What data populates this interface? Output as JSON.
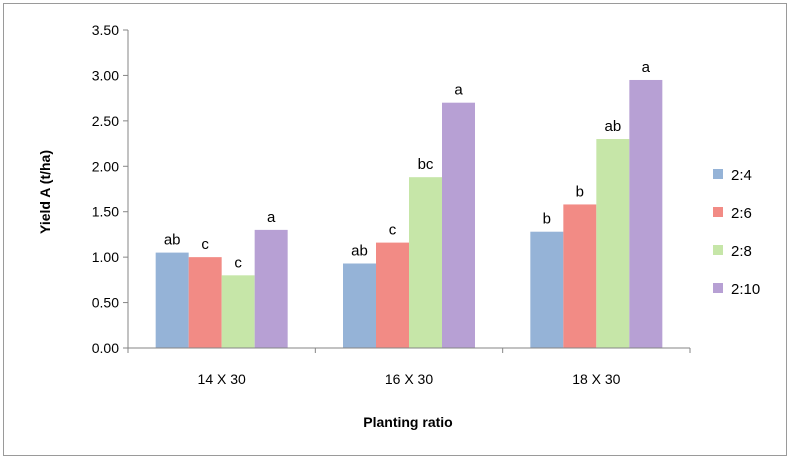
{
  "chart_data": {
    "type": "bar",
    "xlabel": "Planting ratio",
    "ylabel": "Yield A (t/ha)",
    "categories": [
      "14 X 30",
      "16 X 30",
      "18 X 30"
    ],
    "ylim": [
      0,
      3.5
    ],
    "yticks": [
      "0.00",
      "0.50",
      "1.00",
      "1.50",
      "2.00",
      "2.50",
      "3.00",
      "3.50"
    ],
    "grid": false,
    "legend_position": "right",
    "series": [
      {
        "name": "2:4",
        "color": "#95B3D7",
        "values": [
          1.05,
          0.93,
          1.28
        ],
        "labels": [
          "ab",
          "ab",
          "b"
        ]
      },
      {
        "name": "2:6",
        "color": "#F28B85",
        "values": [
          1.0,
          1.16,
          1.58
        ],
        "labels": [
          "c",
          "c",
          "b"
        ]
      },
      {
        "name": "2:8",
        "color": "#C6E6A8",
        "values": [
          0.8,
          1.88,
          2.3
        ],
        "labels": [
          "c",
          "bc",
          "ab"
        ]
      },
      {
        "name": "2:10",
        "color": "#B7A0D4",
        "values": [
          1.3,
          2.7,
          2.95
        ],
        "labels": [
          "a",
          "a",
          "a"
        ]
      }
    ]
  }
}
